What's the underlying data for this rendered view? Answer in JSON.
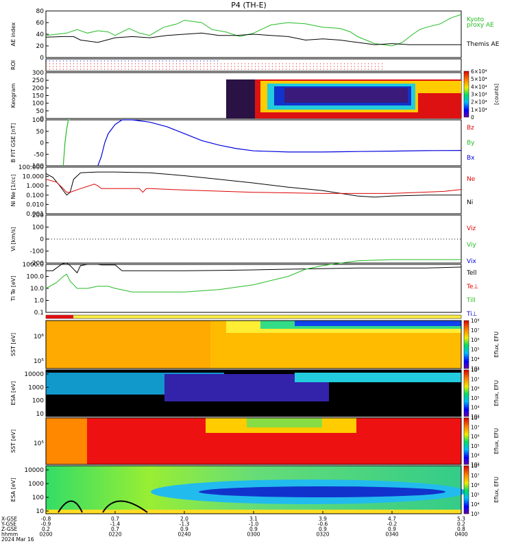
{
  "title": "P4 (TH-E)",
  "colors": {
    "ae_kyoto": "#22bb22",
    "ae_themis": "#000000",
    "bz": "#dd0000",
    "by": "#22bb22",
    "bx": "#0000dd",
    "ne": "#dd0000",
    "ni": "#000000",
    "te": "#000000",
    "ti": "#22bb22"
  },
  "chart_data": [
    {
      "type": "line",
      "panel": "ae",
      "ylabel": "AE index",
      "ylim": [
        0,
        80
      ],
      "yticks": [
        "80",
        "60",
        "40",
        "20",
        "0"
      ],
      "legend": [
        {
          "name": "Kyoto",
          "color": "#22bb22"
        },
        {
          "name": "proxy AE",
          "color": "#22bb22"
        },
        {
          "name": "Themis AE",
          "color": "#000000"
        }
      ],
      "series": [
        {
          "name": "Kyoto proxy AE",
          "color": "#22bb22",
          "x": [
            0,
            3,
            6,
            9,
            12,
            15,
            18,
            20,
            24,
            27,
            30,
            34,
            38,
            40,
            45,
            48,
            52,
            56,
            60,
            65,
            70,
            75,
            80,
            85,
            88,
            90,
            95,
            100,
            103,
            106,
            108,
            110,
            114,
            117,
            120
          ],
          "y": [
            38,
            40,
            42,
            48,
            42,
            46,
            44,
            38,
            50,
            42,
            38,
            52,
            58,
            64,
            60,
            48,
            44,
            36,
            42,
            56,
            60,
            58,
            52,
            50,
            44,
            36,
            24,
            20,
            26,
            40,
            48,
            52,
            58,
            68,
            74
          ]
        },
        {
          "name": "Themis AE",
          "color": "#000000",
          "x": [
            0,
            5,
            8,
            10,
            15,
            20,
            25,
            30,
            35,
            40,
            45,
            50,
            55,
            60,
            65,
            70,
            75,
            80,
            85,
            90,
            95,
            100,
            105,
            110,
            115,
            120
          ],
          "y": [
            35,
            36,
            36,
            30,
            26,
            34,
            36,
            34,
            38,
            40,
            42,
            38,
            38,
            40,
            38,
            36,
            30,
            32,
            30,
            26,
            22,
            24,
            22,
            22,
            22,
            22
          ]
        }
      ]
    },
    {
      "type": "line",
      "panel": "roi",
      "ylabel": "ROI",
      "note": "dotted region-of-interest flags"
    },
    {
      "type": "heatmap",
      "panel": "keogram",
      "ylabel": "Keogram",
      "ylim": [
        0,
        300
      ],
      "yticks": [
        "300",
        "250",
        "200",
        "150",
        "100",
        "50",
        "0"
      ],
      "colorbar": {
        "label": "[counts]",
        "ticks": [
          "6×10⁴",
          "5×10⁴",
          "4×10⁴",
          "3×10⁴",
          "2×10⁴",
          "1×10⁴",
          "0"
        ]
      }
    },
    {
      "type": "line",
      "panel": "bfield",
      "ylabel": "B FIT GSE [nT]",
      "yticks": [
        "100",
        "50",
        "0",
        "-50",
        "-100"
      ],
      "legend": [
        {
          "name": "Bz",
          "color": "#dd0000"
        },
        {
          "name": "By",
          "color": "#22bb22"
        },
        {
          "name": "Bx",
          "color": "#0000dd"
        }
      ],
      "series": [
        {
          "name": "Bx",
          "color": "#0000dd",
          "x": [
            15,
            16,
            17,
            18,
            20,
            22,
            25,
            30,
            35,
            40,
            45,
            50,
            55,
            60,
            70,
            80,
            90,
            100,
            110,
            120
          ],
          "y": [
            -100,
            -60,
            0,
            40,
            80,
            100,
            100,
            90,
            70,
            40,
            10,
            -10,
            -25,
            -35,
            -40,
            -40,
            -38,
            -36,
            -34,
            -33
          ]
        },
        {
          "name": "By",
          "color": "#22bb22",
          "x": [
            5,
            5.5,
            6,
            6.5,
            7
          ],
          "y": [
            -100,
            0,
            60,
            100,
            100
          ]
        },
        {
          "name": "Bz",
          "color": "#dd0000",
          "x": [],
          "y": []
        }
      ]
    },
    {
      "type": "line",
      "panel": "density",
      "ylabel": "Ni Ne [1/cc]",
      "yscale": "log",
      "yticks": [
        "100.000",
        "10.000",
        "1.000",
        "0.100",
        "0.010",
        "0.001"
      ],
      "legend": [
        {
          "name": "Ne",
          "color": "#dd0000"
        },
        {
          "name": "Ni",
          "color": "#000000"
        }
      ],
      "series": [
        {
          "name": "Ni",
          "color": "#000000",
          "x": [
            0,
            2,
            4,
            6,
            7,
            8,
            10,
            15,
            20,
            30,
            40,
            50,
            60,
            70,
            80,
            90,
            95,
            100,
            110,
            120
          ],
          "y": [
            20,
            8,
            1,
            0.1,
            0.2,
            5,
            25,
            30,
            30,
            25,
            12,
            5,
            2,
            0.7,
            0.3,
            0.08,
            0.06,
            0.08,
            0.1,
            0.1
          ]
        },
        {
          "name": "Ne",
          "color": "#dd0000",
          "x": [
            0,
            3,
            5,
            6,
            7,
            10,
            14,
            15,
            16,
            25,
            27,
            28,
            29,
            30,
            40,
            60,
            80,
            100,
            115,
            120
          ],
          "y": [
            5,
            2.5,
            0.5,
            0.2,
            0.2,
            0.5,
            1.5,
            1.0,
            0.5,
            0.5,
            0.5,
            0.2,
            0.5,
            0.5,
            0.35,
            0.2,
            0.15,
            0.15,
            0.25,
            0.4
          ]
        }
      ]
    },
    {
      "type": "line",
      "panel": "velocity",
      "ylabel": "Vi [km/s]",
      "yticks": [
        "200",
        "100",
        "0",
        "-100",
        "-200"
      ],
      "legend": [
        {
          "name": "Viz",
          "color": "#dd0000"
        },
        {
          "name": "Viy",
          "color": "#22bb22"
        },
        {
          "name": "Vix",
          "color": "#0000dd"
        }
      ],
      "series": []
    },
    {
      "type": "line",
      "panel": "temperature",
      "ylabel": "Ti Te [eV]",
      "yscale": "log",
      "yticks": [
        "1000.0",
        "100.0",
        "10.0",
        "1.0",
        "0.1"
      ],
      "legend": [
        {
          "name": "Tell",
          "color": "#000000"
        },
        {
          "name": "Te⊥",
          "color": "#dd0000"
        },
        {
          "name": "Till",
          "color": "#22bb22"
        },
        {
          "name": "Ti⊥",
          "color": "#0000dd"
        }
      ],
      "series": [
        {
          "name": "Tell",
          "color": "#000000",
          "x": [
            0,
            2,
            4,
            5,
            6,
            7,
            9,
            10,
            12,
            15,
            16,
            20,
            22,
            30,
            40,
            50,
            60,
            70,
            80,
            90,
            100,
            110,
            120
          ],
          "y": [
            300,
            300,
            800,
            1200,
            1300,
            800,
            200,
            800,
            1000,
            1000,
            900,
            900,
            300,
            300,
            300,
            320,
            350,
            400,
            450,
            500,
            500,
            500,
            600
          ]
        },
        {
          "name": "Till",
          "color": "#22bb22",
          "x": [
            0,
            3,
            5,
            6,
            7,
            9,
            12,
            15,
            18,
            20,
            25,
            30,
            40,
            50,
            60,
            70,
            75,
            80,
            90,
            100,
            110,
            120
          ],
          "y": [
            10,
            30,
            100,
            150,
            40,
            10,
            10,
            15,
            15,
            10,
            5,
            5,
            5,
            8,
            20,
            100,
            400,
            800,
            2000,
            2500,
            2500,
            2500
          ]
        }
      ]
    },
    {
      "type": "heatmap",
      "panel": "sst_i",
      "ylabel": "SST [eV]",
      "yticks": [
        "10⁶",
        "10⁵"
      ],
      "colorbar": {
        "label": "Eflux, EFU",
        "ticks": [
          "10⁸",
          "10⁷",
          "10⁶",
          "10⁵",
          "10⁴",
          "10³"
        ]
      }
    },
    {
      "type": "heatmap",
      "panel": "esa_i",
      "ylabel": "ESA [eV]",
      "yscale": "log",
      "yticks": [
        "10000",
        "1000",
        "100",
        "10"
      ],
      "colorbar": {
        "label": "Eflux, EFU",
        "ticks": [
          "10⁸",
          "10⁷",
          "10⁶",
          "10⁵",
          "10⁴",
          "10³"
        ]
      }
    },
    {
      "type": "heatmap",
      "panel": "sst_e",
      "ylabel": "SST [eV]",
      "yticks": [
        "10⁵"
      ],
      "colorbar": {
        "label": "Eflux, EFU",
        "ticks": [
          "10⁸",
          "10⁷",
          "10⁶",
          "10⁵",
          "10⁴",
          "10³"
        ]
      }
    },
    {
      "type": "heatmap",
      "panel": "esa_e",
      "ylabel": "ESA [eV]",
      "yscale": "log",
      "yticks": [
        "10000",
        "1000",
        "100",
        "10"
      ],
      "colorbar": {
        "label": "Eflux, EFU",
        "ticks": [
          "10⁸",
          "10⁷",
          "10⁶",
          "10⁵",
          "10⁴",
          "10³"
        ]
      }
    }
  ],
  "x_axis": {
    "row_labels": [
      "X-GSE",
      "Y-GSE",
      "Z-GSE",
      "hhmm",
      "2024 Mar 16"
    ],
    "ticks": [
      {
        "x": "-0.8",
        "y": "-0.9",
        "z": "0.2",
        "hhmm": "0200"
      },
      {
        "x": "0.7",
        "y": "-1.4",
        "z": "0.7",
        "hhmm": "0220"
      },
      {
        "x": "2.0",
        "y": "-1.3",
        "z": "0.9",
        "hhmm": "0240"
      },
      {
        "x": "3.1",
        "y": "-1.0",
        "z": "0.9",
        "hhmm": "0300"
      },
      {
        "x": "3.9",
        "y": "-0.6",
        "z": "0.9",
        "hhmm": "0320"
      },
      {
        "x": "4.7",
        "y": "-0.2",
        "z": "0.9",
        "hhmm": "0340"
      },
      {
        "x": "5.3",
        "y": "0.2",
        "z": "0.8",
        "hhmm": "0400"
      }
    ]
  }
}
